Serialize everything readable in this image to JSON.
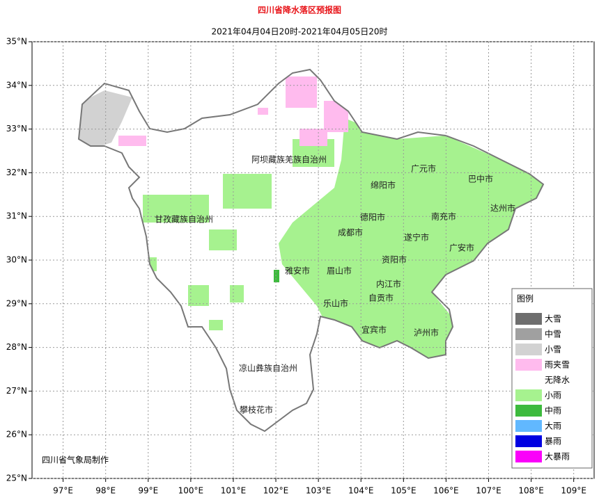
{
  "header": {
    "title": "四川省降水落区预报图",
    "subtitle": "2021年04月04日20时-2021年04月05日20时"
  },
  "axes": {
    "lon_range": [
      96.27,
      109.48
    ],
    "lat_range": [
      25,
      35
    ],
    "lat_ticks": [
      {
        "value": 25,
        "label": "25°N"
      },
      {
        "value": 26,
        "label": "26°N"
      },
      {
        "value": 27,
        "label": "27°N"
      },
      {
        "value": 28,
        "label": "28°N"
      },
      {
        "value": 29,
        "label": "29°N"
      },
      {
        "value": 30,
        "label": "30°N"
      },
      {
        "value": 31,
        "label": "31°N"
      },
      {
        "value": 32,
        "label": "32°N"
      },
      {
        "value": 33,
        "label": "33°N"
      },
      {
        "value": 34,
        "label": "34°N"
      },
      {
        "value": 35,
        "label": "35°N"
      }
    ],
    "lon_ticks": [
      {
        "value": 97,
        "label": "97°E"
      },
      {
        "value": 98,
        "label": "98°E"
      },
      {
        "value": 99,
        "label": "99°E"
      },
      {
        "value": 100,
        "label": "100°E"
      },
      {
        "value": 101,
        "label": "101°E"
      },
      {
        "value": 102,
        "label": "102°E"
      },
      {
        "value": 103,
        "label": "103°E"
      },
      {
        "value": 104,
        "label": "104°E"
      },
      {
        "value": 105,
        "label": "105°E"
      },
      {
        "value": 106,
        "label": "106°E"
      },
      {
        "value": 107,
        "label": "107°E"
      },
      {
        "value": 108,
        "label": "108°E"
      },
      {
        "value": 109,
        "label": "109°E"
      }
    ]
  },
  "map": {
    "cities": [
      "阿坝藏族羌族自治州",
      "广元市",
      "巴中市",
      "绵阳市",
      "达州市",
      "甘孜藏族自治州",
      "德阳市",
      "南充市",
      "成都市",
      "遂宁市",
      "广安市",
      "雅安市",
      "眉山市",
      "资阳市",
      "内江市",
      "乐山市",
      "自贡市",
      "宜宾市",
      "泸州市",
      "凉山彝族自治州",
      "攀枝花市"
    ]
  },
  "legend": {
    "title": "图例",
    "items": [
      {
        "label": "大雪",
        "color": "#6e6e6e"
      },
      {
        "label": "中雪",
        "color": "#a0a0a0"
      },
      {
        "label": "小雪",
        "color": "#d2d2d2"
      },
      {
        "label": "雨夹雪",
        "color": "#ffbbee"
      },
      {
        "label": "无降水",
        "color": "#ffffff"
      },
      {
        "label": "小雨",
        "color": "#a6f28f"
      },
      {
        "label": "中雨",
        "color": "#3dba3d"
      },
      {
        "label": "大雨",
        "color": "#61b8ff"
      },
      {
        "label": "暴雨",
        "color": "#0000e1"
      },
      {
        "label": "大暴雨",
        "color": "#fa00fa"
      }
    ]
  },
  "footer": {
    "credit": "四川省气象局制作"
  }
}
